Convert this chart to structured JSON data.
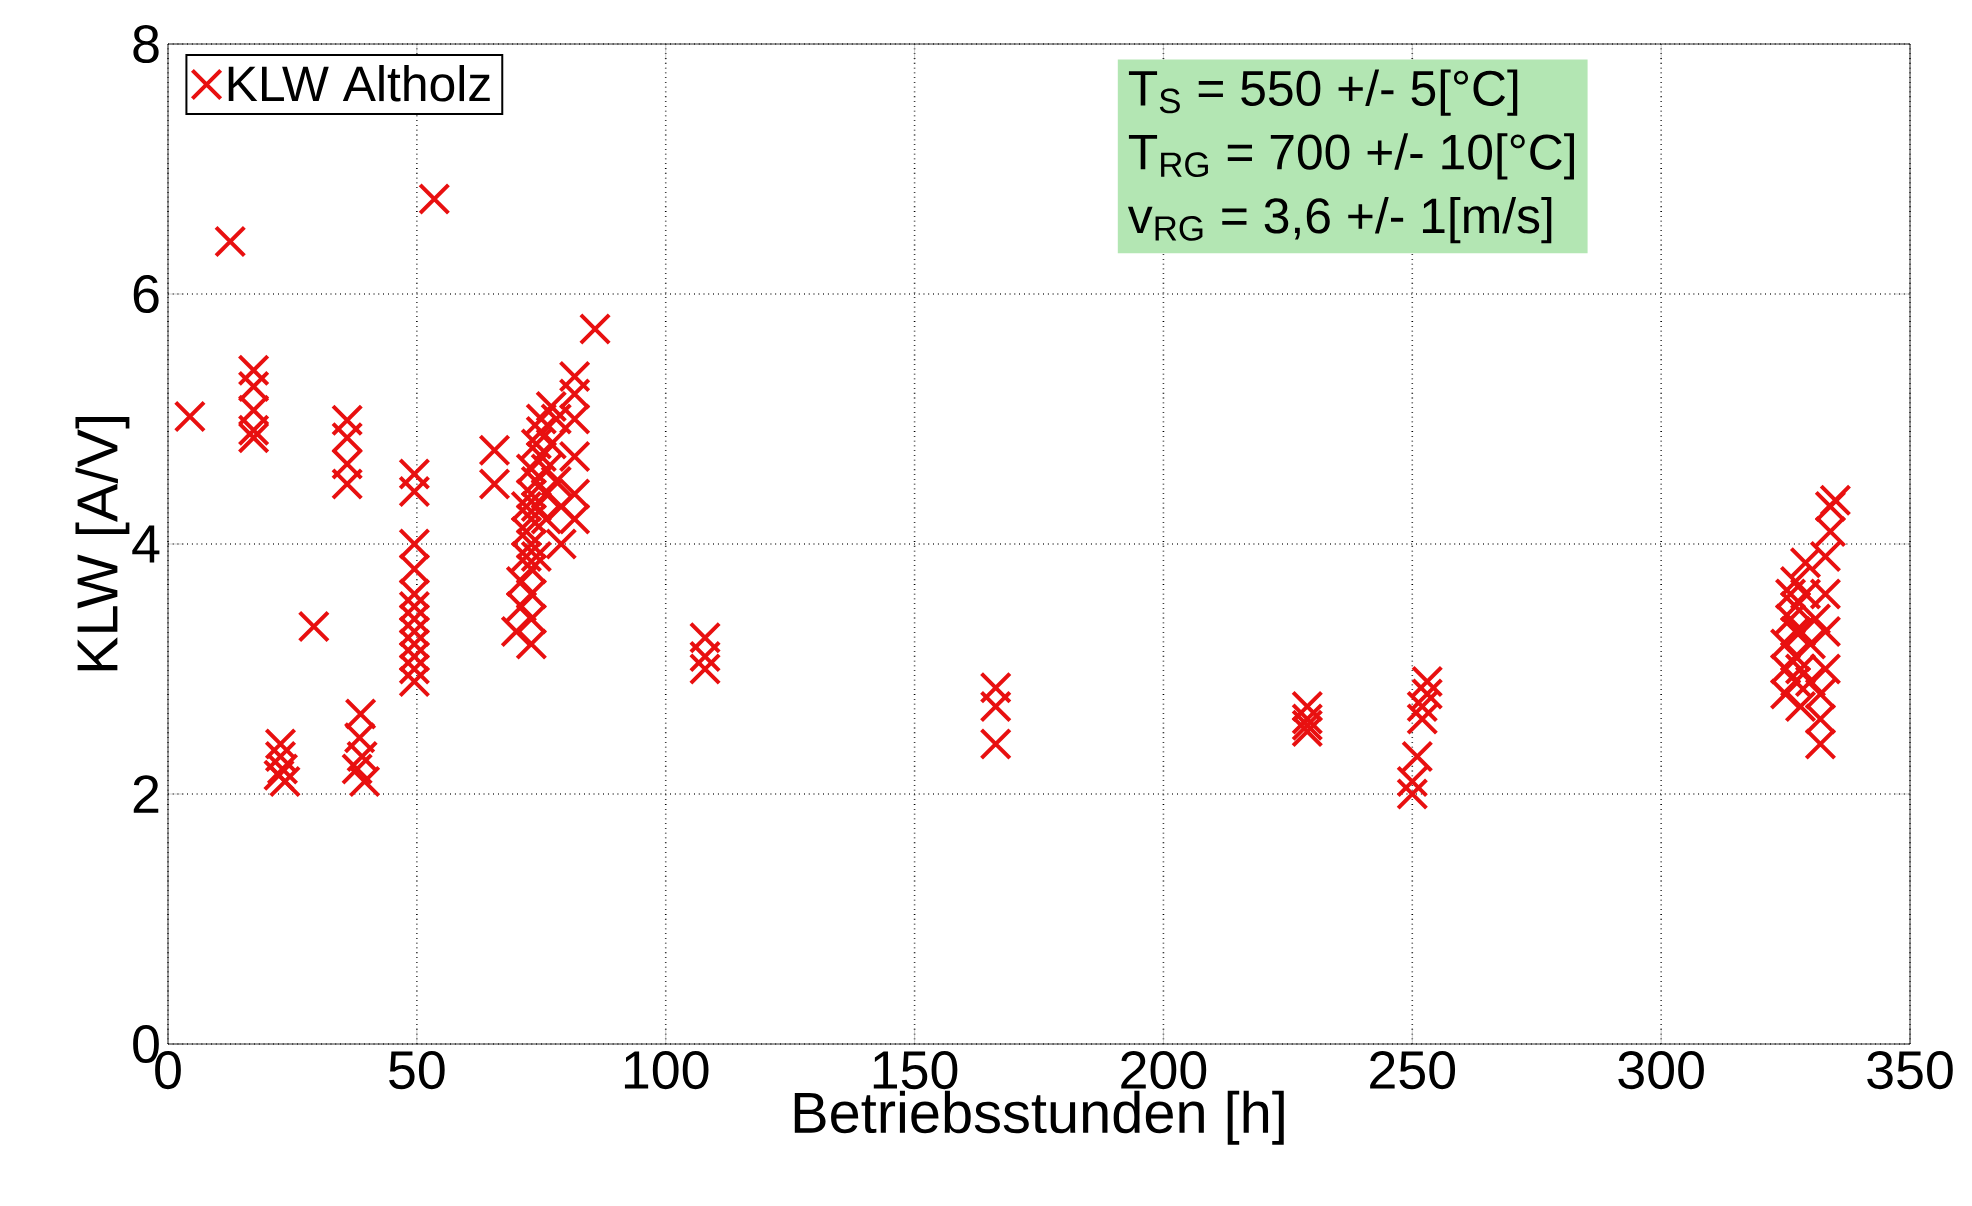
{
  "chart_data": {
    "type": "scatter",
    "xlabel": "Betriebsstunden [h]",
    "ylabel": "KLW [A/V]",
    "annotations": [
      "T$_{S}$    = 550 +/- 5[°C]",
      "T$_{RG}$   = 700 +/- 10[°C]",
      "v$_{RG}$   = 3,6 +/- 1[m/s]"
    ],
    "series": [
      {
        "name": "KLW Altholz",
        "color": "#e81010",
        "x": [
          4.4,
          12.5,
          53.5,
          17.2,
          17.2,
          17.2,
          17.2,
          17.2,
          36,
          36,
          36,
          36,
          49.5,
          49.5,
          29.3,
          49.5,
          49.5,
          49.5,
          49.5,
          49.5,
          49.5,
          49.5,
          49.5,
          49.5,
          49.5,
          38.7,
          38.5,
          39,
          38,
          39.5,
          22.6,
          22.6,
          23,
          22.3,
          23.5,
          70,
          71,
          71,
          72,
          72,
          72,
          73,
          73,
          73,
          73,
          73,
          73,
          73,
          74,
          74,
          74,
          74,
          75,
          75,
          75,
          76,
          76,
          76,
          77,
          77,
          78,
          78,
          79,
          79,
          73,
          65.6,
          65.6,
          81.7,
          81.7,
          81.7,
          81.7,
          81.7,
          81.7,
          85.8,
          107.9,
          107.9,
          107.9,
          166.3,
          166.3,
          166.3,
          228.9,
          228.9,
          228.9,
          228.9,
          250,
          250,
          251,
          252,
          252,
          253,
          253,
          325,
          325,
          325,
          326,
          326,
          327,
          327,
          327,
          327,
          327,
          328,
          328,
          328,
          329,
          329,
          330,
          330,
          331,
          332,
          332,
          332,
          333,
          333,
          333,
          333,
          334,
          334,
          335
        ],
        "values": [
          5.02,
          6.42,
          6.76,
          5.39,
          5.26,
          5.07,
          4.91,
          4.85,
          4.99,
          4.85,
          4.64,
          4.48,
          4.56,
          4.42,
          3.34,
          4.0,
          3.8,
          3.6,
          3.5,
          3.4,
          3.3,
          3.2,
          3.1,
          3.0,
          2.9,
          2.64,
          2.45,
          2.3,
          2.2,
          2.1,
          2.4,
          2.3,
          2.2,
          2.15,
          2.1,
          3.3,
          3.5,
          3.7,
          3.9,
          4.1,
          4.3,
          3.4,
          3.6,
          3.8,
          4.0,
          4.2,
          4.4,
          4.6,
          4.8,
          4.5,
          4.3,
          3.9,
          4.7,
          4.9,
          5.0,
          4.6,
          4.4,
          4.2,
          5.1,
          4.8,
          5.0,
          4.5,
          4.3,
          4.0,
          3.2,
          4.75,
          4.48,
          5.34,
          5.2,
          5.0,
          4.7,
          4.4,
          4.2,
          5.72,
          3.25,
          3.1,
          3.0,
          2.85,
          2.7,
          2.4,
          2.7,
          2.6,
          2.55,
          2.5,
          2.0,
          2.1,
          2.3,
          2.6,
          2.7,
          2.8,
          2.9,
          2.8,
          3.0,
          3.2,
          3.4,
          3.6,
          2.9,
          3.1,
          3.3,
          3.5,
          3.7,
          2.7,
          3.0,
          3.3,
          3.6,
          3.85,
          3.2,
          2.9,
          3.4,
          2.4,
          2.6,
          2.8,
          3.0,
          3.3,
          3.6,
          3.9,
          4.1,
          4.3,
          4.35
        ]
      }
    ],
    "xlim": [
      0,
      350
    ],
    "xticks": [
      0,
      50,
      100,
      150,
      200,
      250,
      300,
      350
    ],
    "ylim": [
      0,
      8
    ],
    "yticks": [
      0,
      2,
      4,
      6,
      8
    ],
    "grid": true,
    "legend": "top left",
    "marker": "cross"
  }
}
